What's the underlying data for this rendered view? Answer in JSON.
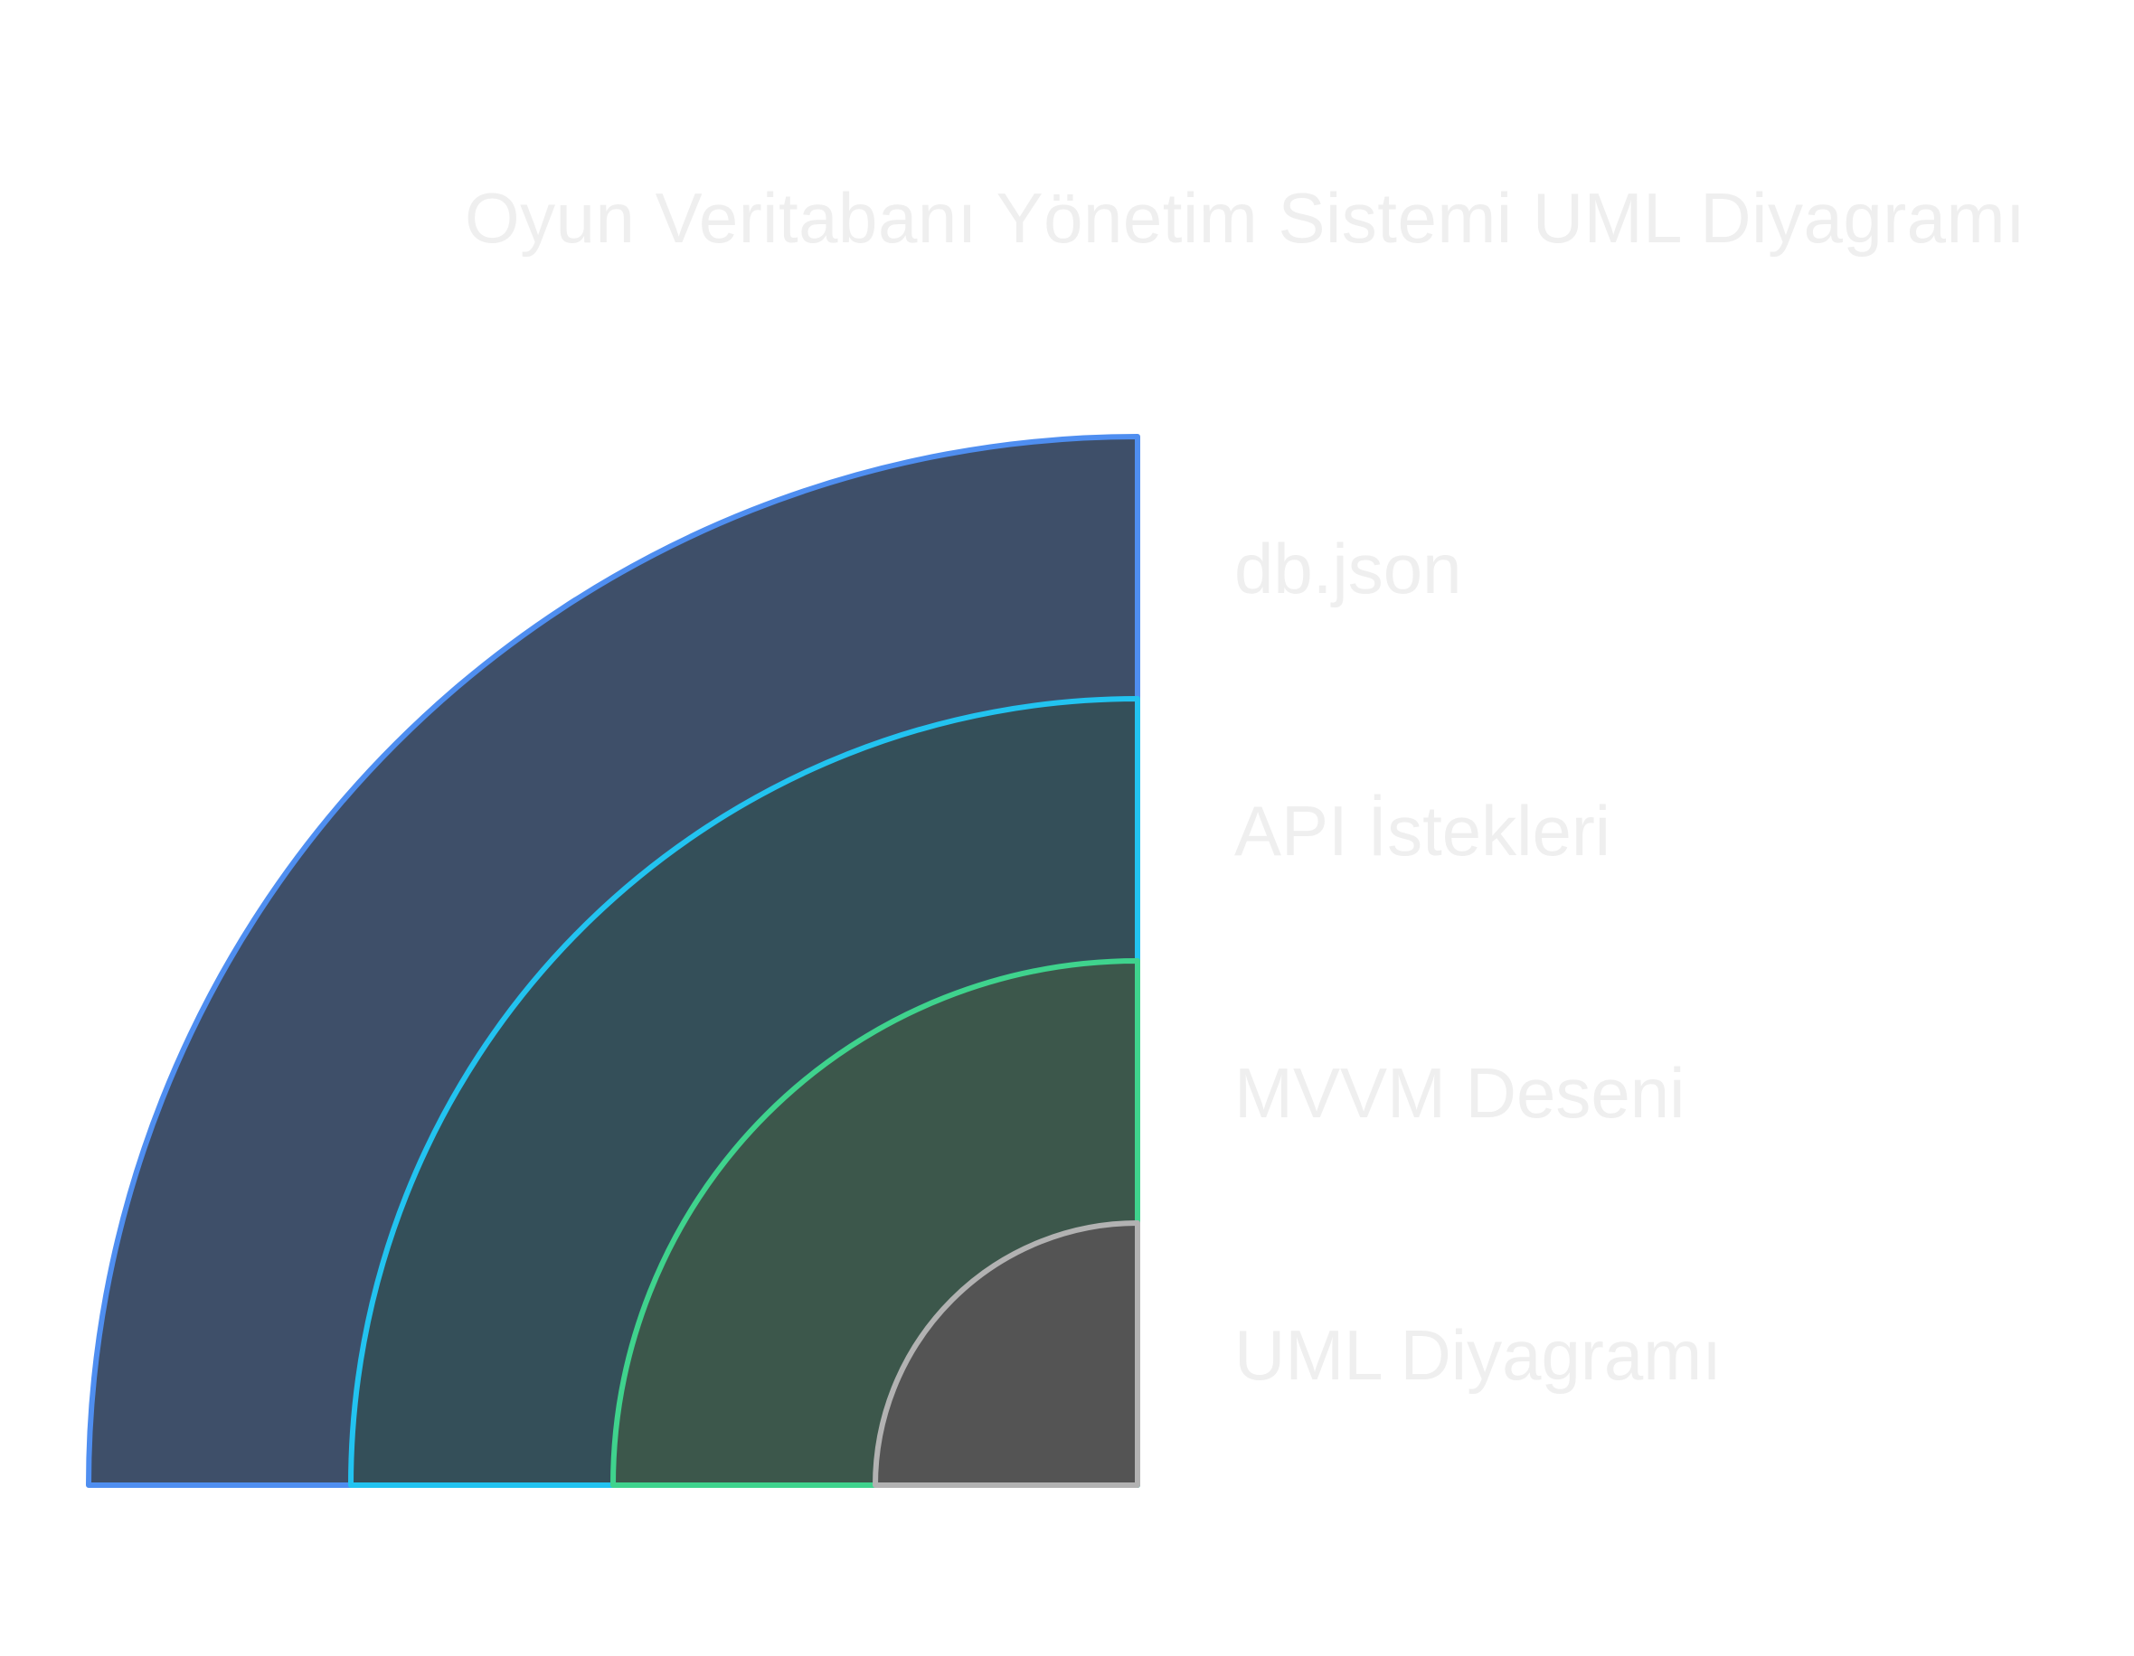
{
  "title": "Oyun Veritabanı Yönetim Sistemi UML Diyagramı",
  "layers": [
    {
      "label": "db.json",
      "fill": "#3e4f69",
      "stroke": "#4f8ef0"
    },
    {
      "label": "API İstekleri",
      "fill": "#344f59",
      "stroke": "#22c3f0"
    },
    {
      "label": "MVVM Deseni",
      "fill": "#3c574b",
      "stroke": "#3fd38d"
    },
    {
      "label": "UML Diyagramı",
      "fill": "#545454",
      "stroke": "#b2b2b2"
    }
  ]
}
